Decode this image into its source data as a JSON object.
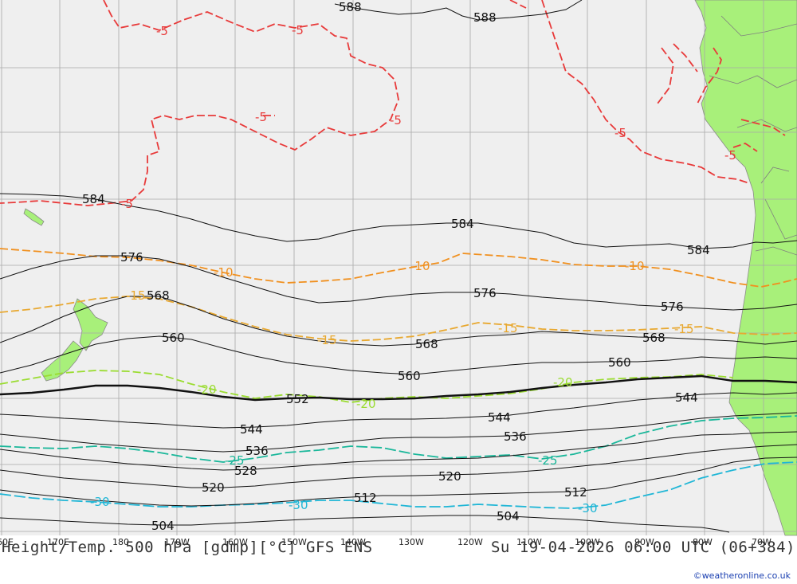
{
  "header": {
    "title": "Height/Temp. 500 hPa [gdmp][°C] GFS ENS",
    "valid_time": "Su 19-04-2026 06:00 UTC (06+384)"
  },
  "credit": "©weatheronline.co.uk",
  "colors": {
    "sea": "#efefef",
    "land": "#a8f07a",
    "grid": "#a8a8a8",
    "height_contour": "#111111",
    "temp_minus5": "#e83a3a",
    "temp_minus10": "#f0901f",
    "temp_minus15": "#e8a830",
    "temp_minus20": "#9adc30",
    "temp_minus25": "#1ab79a",
    "temp_minus30": "#1fb6d6"
  },
  "longitude_ticks": [
    "60E",
    "170E",
    "180",
    "170W",
    "160W",
    "150W",
    "140W",
    "130W",
    "120W",
    "110W",
    "100W",
    "90W",
    "80W",
    "70W"
  ],
  "height_labels": [
    "588",
    "588",
    "584",
    "584",
    "584",
    "576",
    "576",
    "576",
    "568",
    "568",
    "568",
    "560",
    "560",
    "560",
    "552",
    "544",
    "544",
    "544",
    "536",
    "536",
    "528",
    "520",
    "520",
    "512",
    "512",
    "504",
    "504"
  ],
  "temp_labels": {
    "minus5": [
      "-5",
      "-5",
      "-5",
      "-5",
      "-5",
      "-5",
      "-5"
    ],
    "minus10": [
      "-10",
      "-10",
      "-10"
    ],
    "minus15": [
      "-15",
      "-15",
      "-15",
      "-15"
    ],
    "minus20": [
      "-20",
      "-20",
      "-20"
    ],
    "minus25": [
      "-25",
      "-25"
    ],
    "minus30": [
      "-30",
      "-30",
      "-30"
    ]
  }
}
